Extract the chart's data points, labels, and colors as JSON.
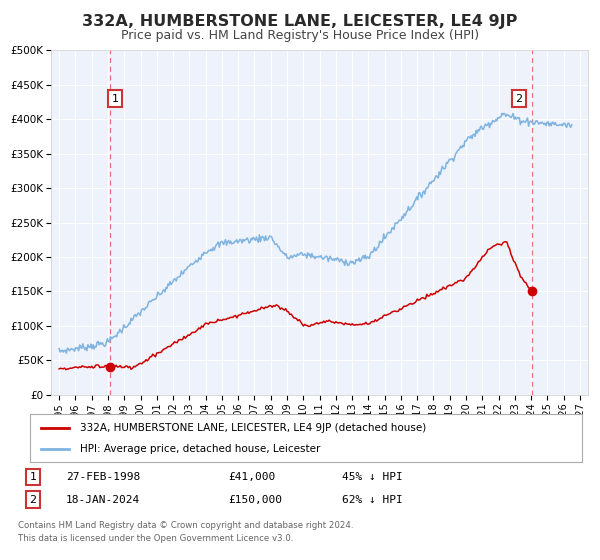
{
  "title": "332A, HUMBERSTONE LANE, LEICESTER, LE4 9JP",
  "subtitle": "Price paid vs. HM Land Registry's House Price Index (HPI)",
  "title_fontsize": 11.5,
  "subtitle_fontsize": 9,
  "background_color": "#ffffff",
  "plot_bg_color": "#eef2fa",
  "grid_color": "#ffffff",
  "ylim": [
    0,
    500000
  ],
  "yticks": [
    0,
    50000,
    100000,
    150000,
    200000,
    250000,
    300000,
    350000,
    400000,
    450000,
    500000
  ],
  "ytick_labels": [
    "£0",
    "£50K",
    "£100K",
    "£150K",
    "£200K",
    "£250K",
    "£300K",
    "£350K",
    "£400K",
    "£450K",
    "£500K"
  ],
  "xlim_left": 1994.5,
  "xlim_right": 2027.5,
  "sale1_date": 1998.15,
  "sale1_price": 41000,
  "sale2_date": 2024.05,
  "sale2_price": 150000,
  "red_line_color": "#cc0000",
  "blue_line_color": "#7fb3e0",
  "dashed_line_color": "#dd6666",
  "legend_label_red": "332A, HUMBERSTONE LANE, LEICESTER, LE4 9JP (detached house)",
  "legend_label_blue": "HPI: Average price, detached house, Leicester",
  "annotation1_date": "27-FEB-1998",
  "annotation1_price": "£41,000",
  "annotation1_hpi": "45% ↓ HPI",
  "annotation2_date": "18-JAN-2024",
  "annotation2_price": "£150,000",
  "annotation2_hpi": "62% ↓ HPI",
  "footer1": "Contains HM Land Registry data © Crown copyright and database right 2024.",
  "footer2": "This data is licensed under the Open Government Licence v3.0."
}
